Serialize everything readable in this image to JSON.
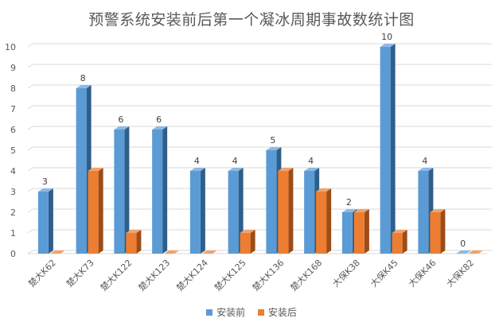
{
  "chart_data": {
    "type": "bar",
    "title": "预警系统安装前后第一个凝冰周期事故数统计图",
    "xlabel": "",
    "ylabel": "",
    "ylim": [
      0,
      10
    ],
    "yticks": [
      "0",
      "1",
      "2",
      "3",
      "4",
      "5",
      "6",
      "7",
      "8",
      "9",
      "10"
    ],
    "grid": true,
    "legend_position": "bottom",
    "categories": [
      "楚大K62",
      "楚大K73",
      "楚大K122",
      "楚大K123",
      "楚大K124",
      "楚大K125",
      "楚大K136",
      "楚大K168",
      "大保K38",
      "大保K45",
      "大保K46",
      "大保K82"
    ],
    "series": [
      {
        "name": "安装前",
        "color": "#5b9bd5",
        "side_color": "#2e5f8c",
        "top_color": "#8db9e3",
        "values": [
          3,
          8,
          6,
          6,
          4,
          4,
          5,
          4,
          2,
          10,
          4,
          0
        ],
        "data_labels": [
          "3",
          "8",
          "6",
          "6",
          "4",
          "4",
          "5",
          "4",
          "2",
          "10",
          "4",
          "0"
        ]
      },
      {
        "name": "安装后",
        "color": "#ed7d31",
        "side_color": "#9c4d17",
        "top_color": "#f3a36b",
        "values": [
          0,
          4,
          1,
          0,
          0,
          1,
          4,
          3,
          2,
          1,
          2,
          0
        ]
      }
    ]
  }
}
